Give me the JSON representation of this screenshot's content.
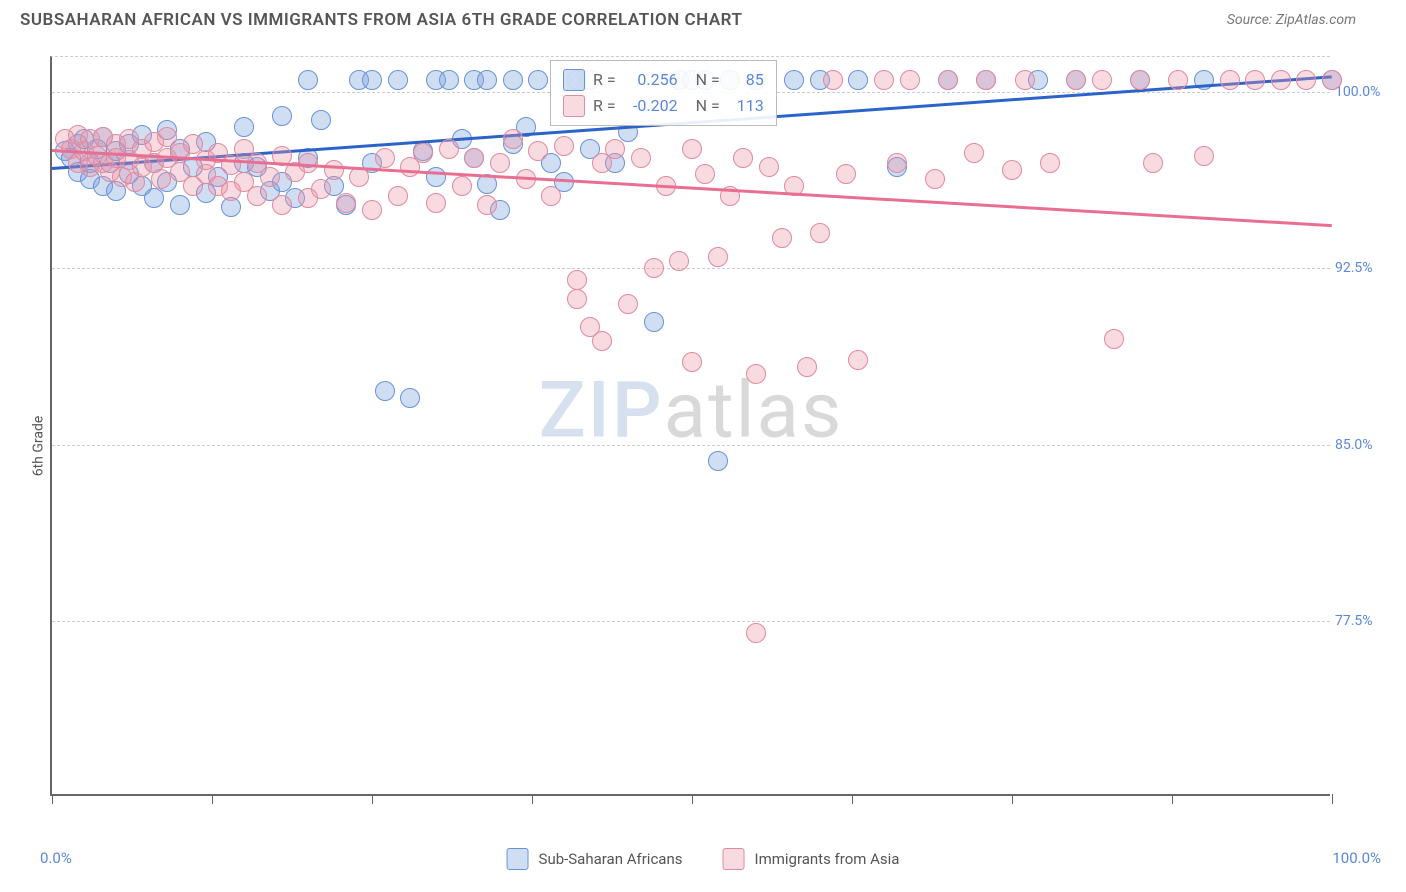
{
  "header": {
    "title": "SUBSAHARAN AFRICAN VS IMMIGRANTS FROM ASIA 6TH GRADE CORRELATION CHART",
    "source": "Source: ZipAtlas.com"
  },
  "axes": {
    "y_title": "6th Grade",
    "x_min_label": "0.0%",
    "x_max_label": "100.0%",
    "x_min": 0,
    "x_max": 100,
    "y_min": 70,
    "y_max": 101.5,
    "y_ticks": [
      {
        "v": 100.0,
        "label": "100.0%"
      },
      {
        "v": 92.5,
        "label": "92.5%"
      },
      {
        "v": 85.0,
        "label": "85.0%"
      },
      {
        "v": 77.5,
        "label": "77.5%"
      }
    ],
    "x_tick_positions": [
      0,
      12.5,
      25,
      37.5,
      50,
      62.5,
      75,
      87.5,
      100
    ],
    "grid_color": "#cccccc",
    "axis_color": "#666666",
    "tick_label_color": "#5b87da"
  },
  "watermark": {
    "zip": "ZIP",
    "atlas": "atlas"
  },
  "series": [
    {
      "id": "subsaharan",
      "name": "Sub-Saharan Africans",
      "fill": "rgba(120,160,220,0.35)",
      "stroke": "#6a93d6",
      "trend_color": "#2b63c9",
      "trend_width": 3,
      "r_value": "0.256",
      "n_value": "85",
      "trend": {
        "x1": 0,
        "y1": 96.8,
        "x2": 100,
        "y2": 100.7
      },
      "points": [
        [
          1,
          97.5
        ],
        [
          1.5,
          97.2
        ],
        [
          2,
          97.8
        ],
        [
          2,
          96.6
        ],
        [
          2.5,
          98.0
        ],
        [
          3,
          97.0
        ],
        [
          3,
          96.3
        ],
        [
          3.5,
          97.6
        ],
        [
          4,
          98.1
        ],
        [
          4,
          96.0
        ],
        [
          4.5,
          97.0
        ],
        [
          5,
          97.5
        ],
        [
          5,
          95.8
        ],
        [
          6,
          96.5
        ],
        [
          6,
          97.8
        ],
        [
          7,
          98.2
        ],
        [
          7,
          96.0
        ],
        [
          8,
          97.0
        ],
        [
          8,
          95.5
        ],
        [
          9,
          98.4
        ],
        [
          9,
          96.2
        ],
        [
          10,
          97.6
        ],
        [
          10,
          95.2
        ],
        [
          11,
          96.8
        ],
        [
          12,
          97.9
        ],
        [
          12,
          95.7
        ],
        [
          13,
          96.4
        ],
        [
          14,
          95.1
        ],
        [
          15,
          97.0
        ],
        [
          15,
          98.5
        ],
        [
          16,
          96.8
        ],
        [
          17,
          95.8
        ],
        [
          18,
          99.0
        ],
        [
          18,
          96.2
        ],
        [
          19,
          95.5
        ],
        [
          20,
          97.2
        ],
        [
          20,
          100.5
        ],
        [
          21,
          98.8
        ],
        [
          22,
          96.0
        ],
        [
          23,
          95.2
        ],
        [
          24,
          100.5
        ],
        [
          25,
          100.5
        ],
        [
          25,
          97.0
        ],
        [
          26,
          87.3
        ],
        [
          27,
          100.5
        ],
        [
          28,
          87.0
        ],
        [
          29,
          97.5
        ],
        [
          30,
          100.5
        ],
        [
          30,
          96.4
        ],
        [
          31,
          100.5
        ],
        [
          32,
          98.0
        ],
        [
          33,
          100.5
        ],
        [
          33,
          97.2
        ],
        [
          34,
          100.5
        ],
        [
          34,
          96.1
        ],
        [
          35,
          95.0
        ],
        [
          36,
          100.5
        ],
        [
          36,
          97.8
        ],
        [
          37,
          98.5
        ],
        [
          38,
          100.5
        ],
        [
          39,
          97.0
        ],
        [
          40,
          96.2
        ],
        [
          41,
          100.5
        ],
        [
          42,
          97.6
        ],
        [
          42,
          100.5
        ],
        [
          44,
          97.0
        ],
        [
          45,
          98.3
        ],
        [
          47,
          90.2
        ],
        [
          49,
          100.5
        ],
        [
          50,
          100.5
        ],
        [
          51,
          100.5
        ],
        [
          52,
          84.3
        ],
        [
          53,
          100.5
        ],
        [
          55,
          100.5
        ],
        [
          58,
          100.5
        ],
        [
          60,
          100.5
        ],
        [
          63,
          100.5
        ],
        [
          66,
          96.8
        ],
        [
          70,
          100.5
        ],
        [
          73,
          100.5
        ],
        [
          77,
          100.5
        ],
        [
          80,
          100.5
        ],
        [
          85,
          100.5
        ],
        [
          90,
          100.5
        ],
        [
          100,
          100.5
        ]
      ]
    },
    {
      "id": "asia",
      "name": "Immigrants from Asia",
      "fill": "rgba(235,150,170,0.35)",
      "stroke": "#e18aa0",
      "trend_color": "#e86f92",
      "trend_width": 2.5,
      "r_value": "-0.202",
      "n_value": "113",
      "trend": {
        "x1": 0,
        "y1": 97.6,
        "x2": 100,
        "y2": 94.4
      },
      "points": [
        [
          1,
          98.0
        ],
        [
          1.5,
          97.6
        ],
        [
          2,
          98.2
        ],
        [
          2,
          97.0
        ],
        [
          2.5,
          97.5
        ],
        [
          3,
          98.0
        ],
        [
          3,
          96.8
        ],
        [
          3.5,
          97.3
        ],
        [
          4,
          98.1
        ],
        [
          4,
          97.0
        ],
        [
          4.5,
          96.6
        ],
        [
          5,
          97.8
        ],
        [
          5,
          97.2
        ],
        [
          5.5,
          96.4
        ],
        [
          6,
          98.0
        ],
        [
          6,
          97.1
        ],
        [
          6.5,
          96.2
        ],
        [
          7,
          97.6
        ],
        [
          7,
          96.8
        ],
        [
          8,
          97.9
        ],
        [
          8,
          97.0
        ],
        [
          8.5,
          96.3
        ],
        [
          9,
          98.1
        ],
        [
          9,
          97.2
        ],
        [
          10,
          96.6
        ],
        [
          10,
          97.4
        ],
        [
          11,
          96.0
        ],
        [
          11,
          97.8
        ],
        [
          12,
          96.5
        ],
        [
          12,
          97.1
        ],
        [
          13,
          96.0
        ],
        [
          13,
          97.4
        ],
        [
          14,
          95.8
        ],
        [
          14,
          96.9
        ],
        [
          15,
          97.6
        ],
        [
          15,
          96.2
        ],
        [
          16,
          95.6
        ],
        [
          16,
          97.0
        ],
        [
          17,
          96.4
        ],
        [
          18,
          95.2
        ],
        [
          18,
          97.3
        ],
        [
          19,
          96.6
        ],
        [
          20,
          95.5
        ],
        [
          20,
          97.0
        ],
        [
          21,
          95.9
        ],
        [
          22,
          96.7
        ],
        [
          23,
          95.3
        ],
        [
          24,
          96.4
        ],
        [
          25,
          95.0
        ],
        [
          26,
          97.2
        ],
        [
          27,
          95.6
        ],
        [
          28,
          96.8
        ],
        [
          29,
          97.4
        ],
        [
          30,
          95.3
        ],
        [
          31,
          97.6
        ],
        [
          32,
          96.0
        ],
        [
          33,
          97.2
        ],
        [
          34,
          95.2
        ],
        [
          35,
          97.0
        ],
        [
          36,
          98.0
        ],
        [
          37,
          96.3
        ],
        [
          38,
          97.5
        ],
        [
          39,
          95.6
        ],
        [
          40,
          97.7
        ],
        [
          41,
          92.0
        ],
        [
          41,
          91.2
        ],
        [
          42,
          90.0
        ],
        [
          43,
          89.4
        ],
        [
          43,
          97.0
        ],
        [
          44,
          97.6
        ],
        [
          45,
          91.0
        ],
        [
          46,
          97.2
        ],
        [
          47,
          92.5
        ],
        [
          48,
          96.0
        ],
        [
          49,
          92.8
        ],
        [
          50,
          97.6
        ],
        [
          50,
          88.5
        ],
        [
          51,
          96.5
        ],
        [
          52,
          93.0
        ],
        [
          53,
          95.6
        ],
        [
          54,
          97.2
        ],
        [
          55,
          88.0
        ],
        [
          55,
          77.0
        ],
        [
          56,
          96.8
        ],
        [
          57,
          93.8
        ],
        [
          58,
          96.0
        ],
        [
          59,
          88.3
        ],
        [
          60,
          94.0
        ],
        [
          61,
          100.5
        ],
        [
          62,
          96.5
        ],
        [
          63,
          88.6
        ],
        [
          65,
          100.5
        ],
        [
          66,
          97.0
        ],
        [
          67,
          100.5
        ],
        [
          69,
          96.3
        ],
        [
          70,
          100.5
        ],
        [
          72,
          97.4
        ],
        [
          73,
          100.5
        ],
        [
          75,
          96.7
        ],
        [
          76,
          100.5
        ],
        [
          78,
          97.0
        ],
        [
          80,
          100.5
        ],
        [
          82,
          100.5
        ],
        [
          83,
          89.5
        ],
        [
          85,
          100.5
        ],
        [
          86,
          97.0
        ],
        [
          88,
          100.5
        ],
        [
          90,
          97.3
        ],
        [
          92,
          100.5
        ],
        [
          94,
          100.5
        ],
        [
          96,
          100.5
        ],
        [
          98,
          100.5
        ],
        [
          100,
          100.5
        ]
      ]
    }
  ],
  "legend_box": {
    "r_label": "R =",
    "n_label": "N ="
  },
  "bottom_legend": {
    "items": [
      {
        "series": "subsaharan"
      },
      {
        "series": "asia"
      }
    ]
  }
}
